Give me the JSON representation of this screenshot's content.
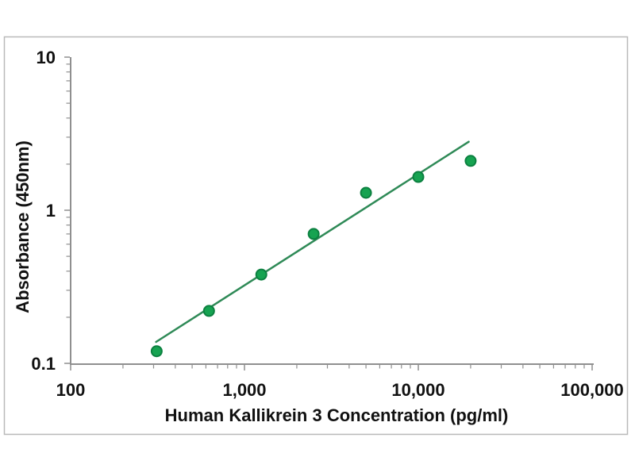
{
  "page": {
    "background_color": "#ffffff",
    "frame_border_color": "#b9b9b9",
    "axis_color": "#8f8f8f",
    "text_color": "#111111"
  },
  "chart_data": {
    "type": "scatter",
    "title": "",
    "xlabel": "Human Kallikrein 3 Concentration (pg/ml)",
    "ylabel": "Absorbance (450nm)",
    "x_scale": "log",
    "y_scale": "log",
    "xlim": [
      100,
      100000
    ],
    "ylim": [
      0.1,
      10
    ],
    "grid": false,
    "legend": false,
    "minor_ticks": "log subdivisions 2-9 per decade, drawn outside both axes",
    "x_ticks": [
      {
        "value": 100,
        "label": "100"
      },
      {
        "value": 1000,
        "label": "1,000"
      },
      {
        "value": 10000,
        "label": "10,000"
      },
      {
        "value": 100000,
        "label": "100,000"
      }
    ],
    "y_ticks": [
      {
        "value": 10,
        "label": "10"
      },
      {
        "value": 1,
        "label": "1"
      },
      {
        "value": 0.1,
        "label": "0.1"
      }
    ],
    "series": [
      {
        "name": "fit-line",
        "type": "line",
        "x": [
          310,
          19500
        ],
        "y": [
          0.138,
          2.8
        ],
        "color": "#2f8a57",
        "width": 2.5
      },
      {
        "name": "standard-points",
        "type": "scatter",
        "marker": "circle",
        "marker_color": "#16a351",
        "marker_edge_color": "#0c8040",
        "x": [
          312.5,
          625,
          1250,
          2500,
          5000,
          10000,
          20000
        ],
        "y": [
          0.12,
          0.22,
          0.38,
          0.7,
          1.3,
          1.65,
          2.1
        ]
      }
    ]
  }
}
